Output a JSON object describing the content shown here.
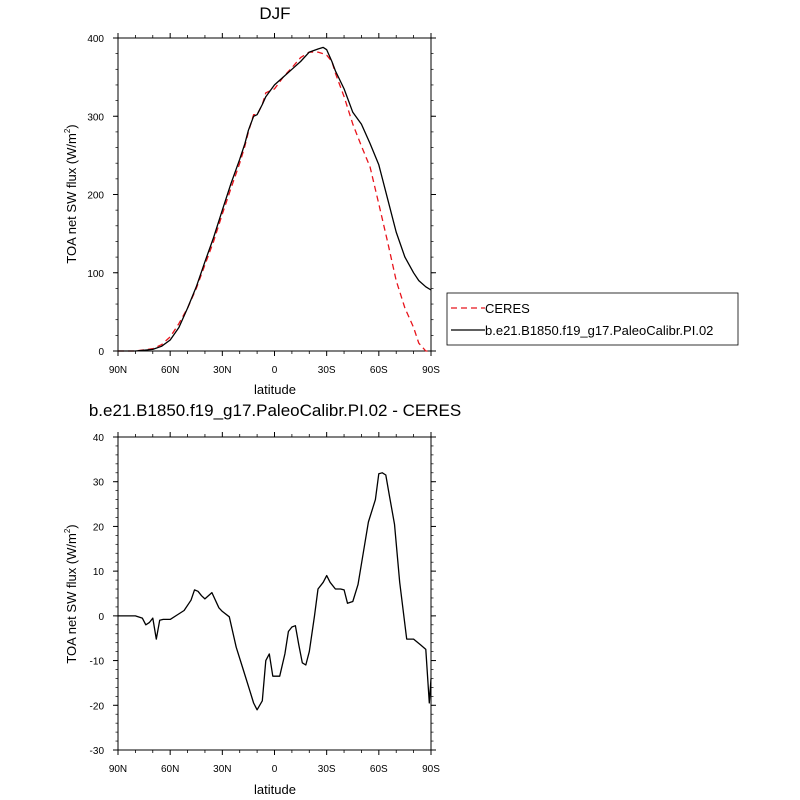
{
  "chart_data": [
    {
      "type": "line",
      "title": "DJF",
      "xlabel": "latitude",
      "ylabel": "TOA net SW flux (W/m2)",
      "ylabel_main": "TOA net SW flux (W/m",
      "ylabel_sup": "2",
      "ylabel_close": ")",
      "x_ticks": [
        90,
        60,
        30,
        0,
        -30,
        -60,
        -90
      ],
      "x_tick_labels": [
        "90N",
        "60N",
        "30N",
        "0",
        "30S",
        "60S",
        "90S"
      ],
      "xlim": [
        90,
        -90
      ],
      "y_ticks": [
        0,
        100,
        200,
        300,
        400
      ],
      "y_tick_labels": [
        "0",
        "100",
        "200",
        "300",
        "400"
      ],
      "ylim": [
        0,
        400
      ],
      "legend": {
        "placement": "outside-right"
      },
      "series": [
        {
          "name": "CERES",
          "color": "#e8141c",
          "dash": "dashed",
          "x": [
            90,
            80,
            70,
            65,
            60,
            55,
            50,
            45,
            40,
            35,
            30,
            25,
            20,
            17,
            15,
            12,
            10,
            7,
            5,
            0,
            -5,
            -10,
            -15,
            -20,
            -25,
            -28,
            -30,
            -33,
            -35,
            -40,
            -45,
            -50,
            -55,
            -60,
            -65,
            -70,
            -75,
            -80,
            -83,
            -87,
            -90
          ],
          "y": [
            0,
            0,
            3,
            8,
            18,
            35,
            55,
            80,
            110,
            140,
            175,
            208,
            240,
            262,
            280,
            302,
            302,
            315,
            330,
            335,
            350,
            362,
            375,
            382,
            382,
            380,
            378,
            370,
            355,
            325,
            290,
            262,
            235,
            188,
            140,
            90,
            55,
            30,
            10,
            0,
            0
          ]
        },
        {
          "name": "b.e21.B1850.f19_g17.PaleoCalibr.PI.02",
          "color": "#000000",
          "dash": "solid",
          "x": [
            90,
            80,
            70,
            65,
            60,
            55,
            50,
            45,
            40,
            35,
            30,
            25,
            20,
            17,
            15,
            12,
            10,
            7,
            5,
            0,
            -5,
            -10,
            -15,
            -20,
            -25,
            -28,
            -30,
            -33,
            -35,
            -40,
            -45,
            -50,
            -55,
            -60,
            -65,
            -70,
            -75,
            -80,
            -83,
            -87,
            -90
          ],
          "y": [
            0,
            0,
            2,
            6,
            14,
            30,
            55,
            82,
            114,
            145,
            180,
            214,
            245,
            265,
            282,
            300,
            302,
            315,
            325,
            340,
            350,
            360,
            370,
            382,
            386,
            388,
            385,
            370,
            358,
            335,
            305,
            290,
            265,
            238,
            195,
            152,
            120,
            100,
            90,
            82,
            78
          ]
        }
      ]
    },
    {
      "type": "line",
      "title": "b.e21.B1850.f19_g17.PaleoCalibr.PI.02 - CERES",
      "xlabel": "latitude",
      "ylabel": "TOA net SW flux (W/m2)",
      "ylabel_main": "TOA net SW flux (W/m",
      "ylabel_sup": "2",
      "ylabel_close": ")",
      "x_ticks": [
        90,
        60,
        30,
        0,
        -30,
        -60,
        -90
      ],
      "x_tick_labels": [
        "90N",
        "60N",
        "30N",
        "0",
        "30S",
        "60S",
        "90S"
      ],
      "xlim": [
        90,
        -90
      ],
      "y_ticks": [
        -30,
        -20,
        -10,
        0,
        10,
        20,
        30,
        40
      ],
      "y_tick_labels": [
        "-30",
        "-20",
        "-10",
        "0",
        "10",
        "20",
        "30",
        "40"
      ],
      "ylim": [
        -30,
        40
      ],
      "series": [
        {
          "color": "#000000",
          "dash": "solid",
          "x": [
            90,
            85,
            80,
            76,
            74,
            72,
            70,
            68,
            66,
            64,
            60,
            56,
            52,
            48,
            46,
            44,
            42,
            40,
            36,
            32,
            30,
            26,
            22,
            18,
            14,
            12,
            10,
            7,
            5,
            3,
            1,
            -1,
            -3,
            -6,
            -8,
            -10,
            -12,
            -14,
            -16,
            -18,
            -20,
            -23,
            -25,
            -28,
            -30,
            -32,
            -35,
            -38,
            -40,
            -42,
            -45,
            -48,
            -51,
            -54,
            -58,
            -60,
            -62,
            -64,
            -66,
            -69,
            -72,
            -76,
            -80,
            -84,
            -87,
            -89,
            -90
          ],
          "y": [
            0,
            0,
            0,
            -0.5,
            -2,
            -1.5,
            -0.5,
            -5.2,
            -1,
            -0.8,
            -0.8,
            0.2,
            1.2,
            3.5,
            5.8,
            5.5,
            4.5,
            3.8,
            5.2,
            1.8,
            1,
            -0.2,
            -7,
            -12,
            -17,
            -19.5,
            -21,
            -19,
            -10,
            -8.5,
            -13.5,
            -13.5,
            -13.5,
            -8.5,
            -3.5,
            -2.5,
            -2.2,
            -6.5,
            -10.5,
            -11,
            -8,
            0,
            6,
            7.5,
            9,
            7.5,
            6,
            6,
            5.8,
            2.8,
            3.2,
            7,
            14,
            21,
            26,
            31.8,
            32,
            31.5,
            27,
            20.5,
            7.5,
            -5.2,
            -5.2,
            -6.5,
            -7.5,
            -19.5,
            -14
          ]
        }
      ]
    }
  ]
}
